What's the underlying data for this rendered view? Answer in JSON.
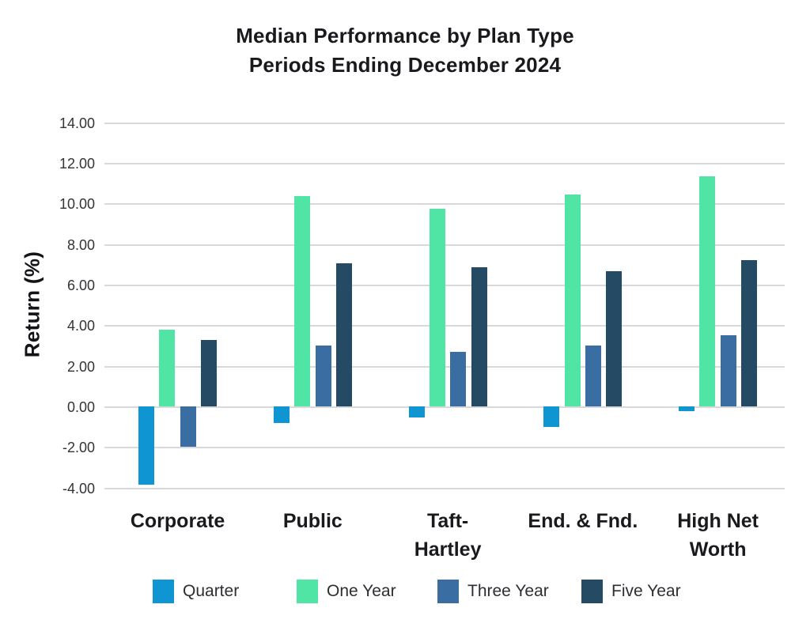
{
  "title": {
    "line1": "Median Performance by Plan Type",
    "line2": "Periods Ending December 2024"
  },
  "chart_data": {
    "type": "bar",
    "title": "Median Performance by Plan Type",
    "subtitle": "Periods Ending December 2024",
    "xlabel": "",
    "ylabel": "Return (%)",
    "categories": [
      "Corporate",
      "Public",
      "Taft-Hartley",
      "End. & Fnd.",
      "High Net Worth"
    ],
    "category_display": [
      [
        "Corporate"
      ],
      [
        "Public"
      ],
      [
        "Taft-",
        "Hartley"
      ],
      [
        "End. & Fnd."
      ],
      [
        "High Net",
        "Worth"
      ]
    ],
    "series": [
      {
        "name": "Quarter",
        "color": "#1095d3",
        "values": [
          -3.85,
          -0.8,
          -0.55,
          -1.0,
          -0.25
        ]
      },
      {
        "name": "One Year",
        "color": "#50e5a4",
        "values": [
          3.78,
          10.38,
          9.72,
          10.45,
          11.32
        ]
      },
      {
        "name": "Three Year",
        "color": "#3a6da1",
        "values": [
          -2.0,
          3.0,
          2.68,
          3.0,
          3.52
        ]
      },
      {
        "name": "Five Year",
        "color": "#254a63",
        "values": [
          3.28,
          7.05,
          6.85,
          6.65,
          7.22
        ]
      }
    ],
    "ylim": [
      -4,
      14
    ],
    "yticks": [
      14,
      12,
      10,
      8,
      6,
      4,
      2,
      0,
      -2,
      -4
    ],
    "ytick_labels": [
      "14.00",
      "12.00",
      "10.00",
      "8.00",
      "6.00",
      "4.00",
      "2.00",
      "0.00",
      "-2.00",
      "-4.00"
    ],
    "grid": true,
    "legend_position": "bottom"
  },
  "colors": {
    "background": "#ffffff",
    "gridline": "#d9d9dc",
    "title_text": "#1a1a1e",
    "tick_text": "#333338",
    "legend_text": "#2d2d32"
  }
}
